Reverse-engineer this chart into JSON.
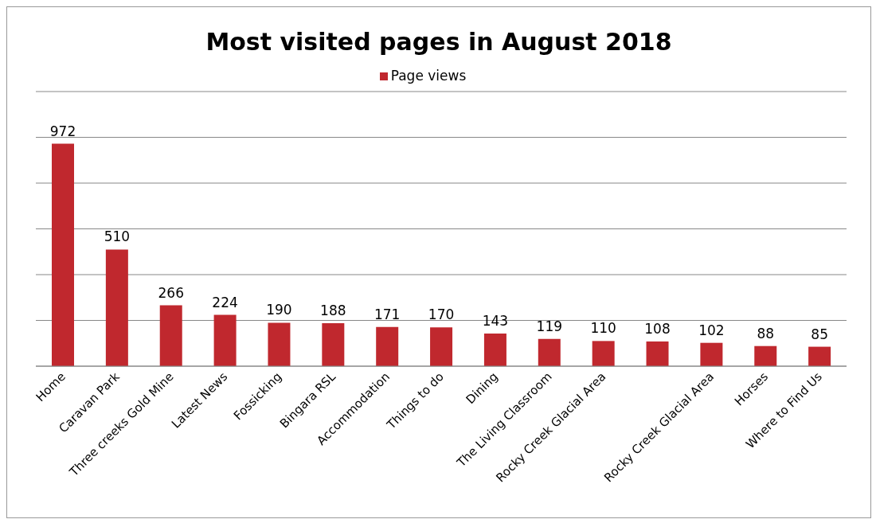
{
  "chart_data": {
    "type": "bar",
    "title": "Most visited pages in August 2018",
    "legend": "top",
    "categories": [
      "Home",
      "Caravan Park",
      "Three creeks Gold Mine",
      "Latest News",
      "Fossicking",
      "Bingara RSL",
      "Accommodation",
      "Things to do",
      "Dining",
      "The Living Classroom",
      "Rocky Creek Glacial Area",
      null,
      "Rocky Creek Glacial Area",
      "Horses",
      "Where to Find Us"
    ],
    "series": [
      {
        "name": "Page views",
        "color": "#c0282e",
        "values": [
          972,
          510,
          266,
          224,
          190,
          188,
          171,
          170,
          143,
          119,
          110,
          108,
          102,
          88,
          85
        ]
      }
    ],
    "ylim": [
      0,
      1200
    ],
    "yticks": [
      {
        "value": 0,
        "label": null
      },
      {
        "value": 200,
        "label": null
      },
      {
        "value": 400,
        "label": null
      },
      {
        "value": 600,
        "label": null
      },
      {
        "value": 800,
        "label": null
      },
      {
        "value": 1000,
        "label": null
      },
      {
        "value": 1200,
        "label": null
      }
    ],
    "grid": "y",
    "tick_labels": "x",
    "data_labels": true
  }
}
